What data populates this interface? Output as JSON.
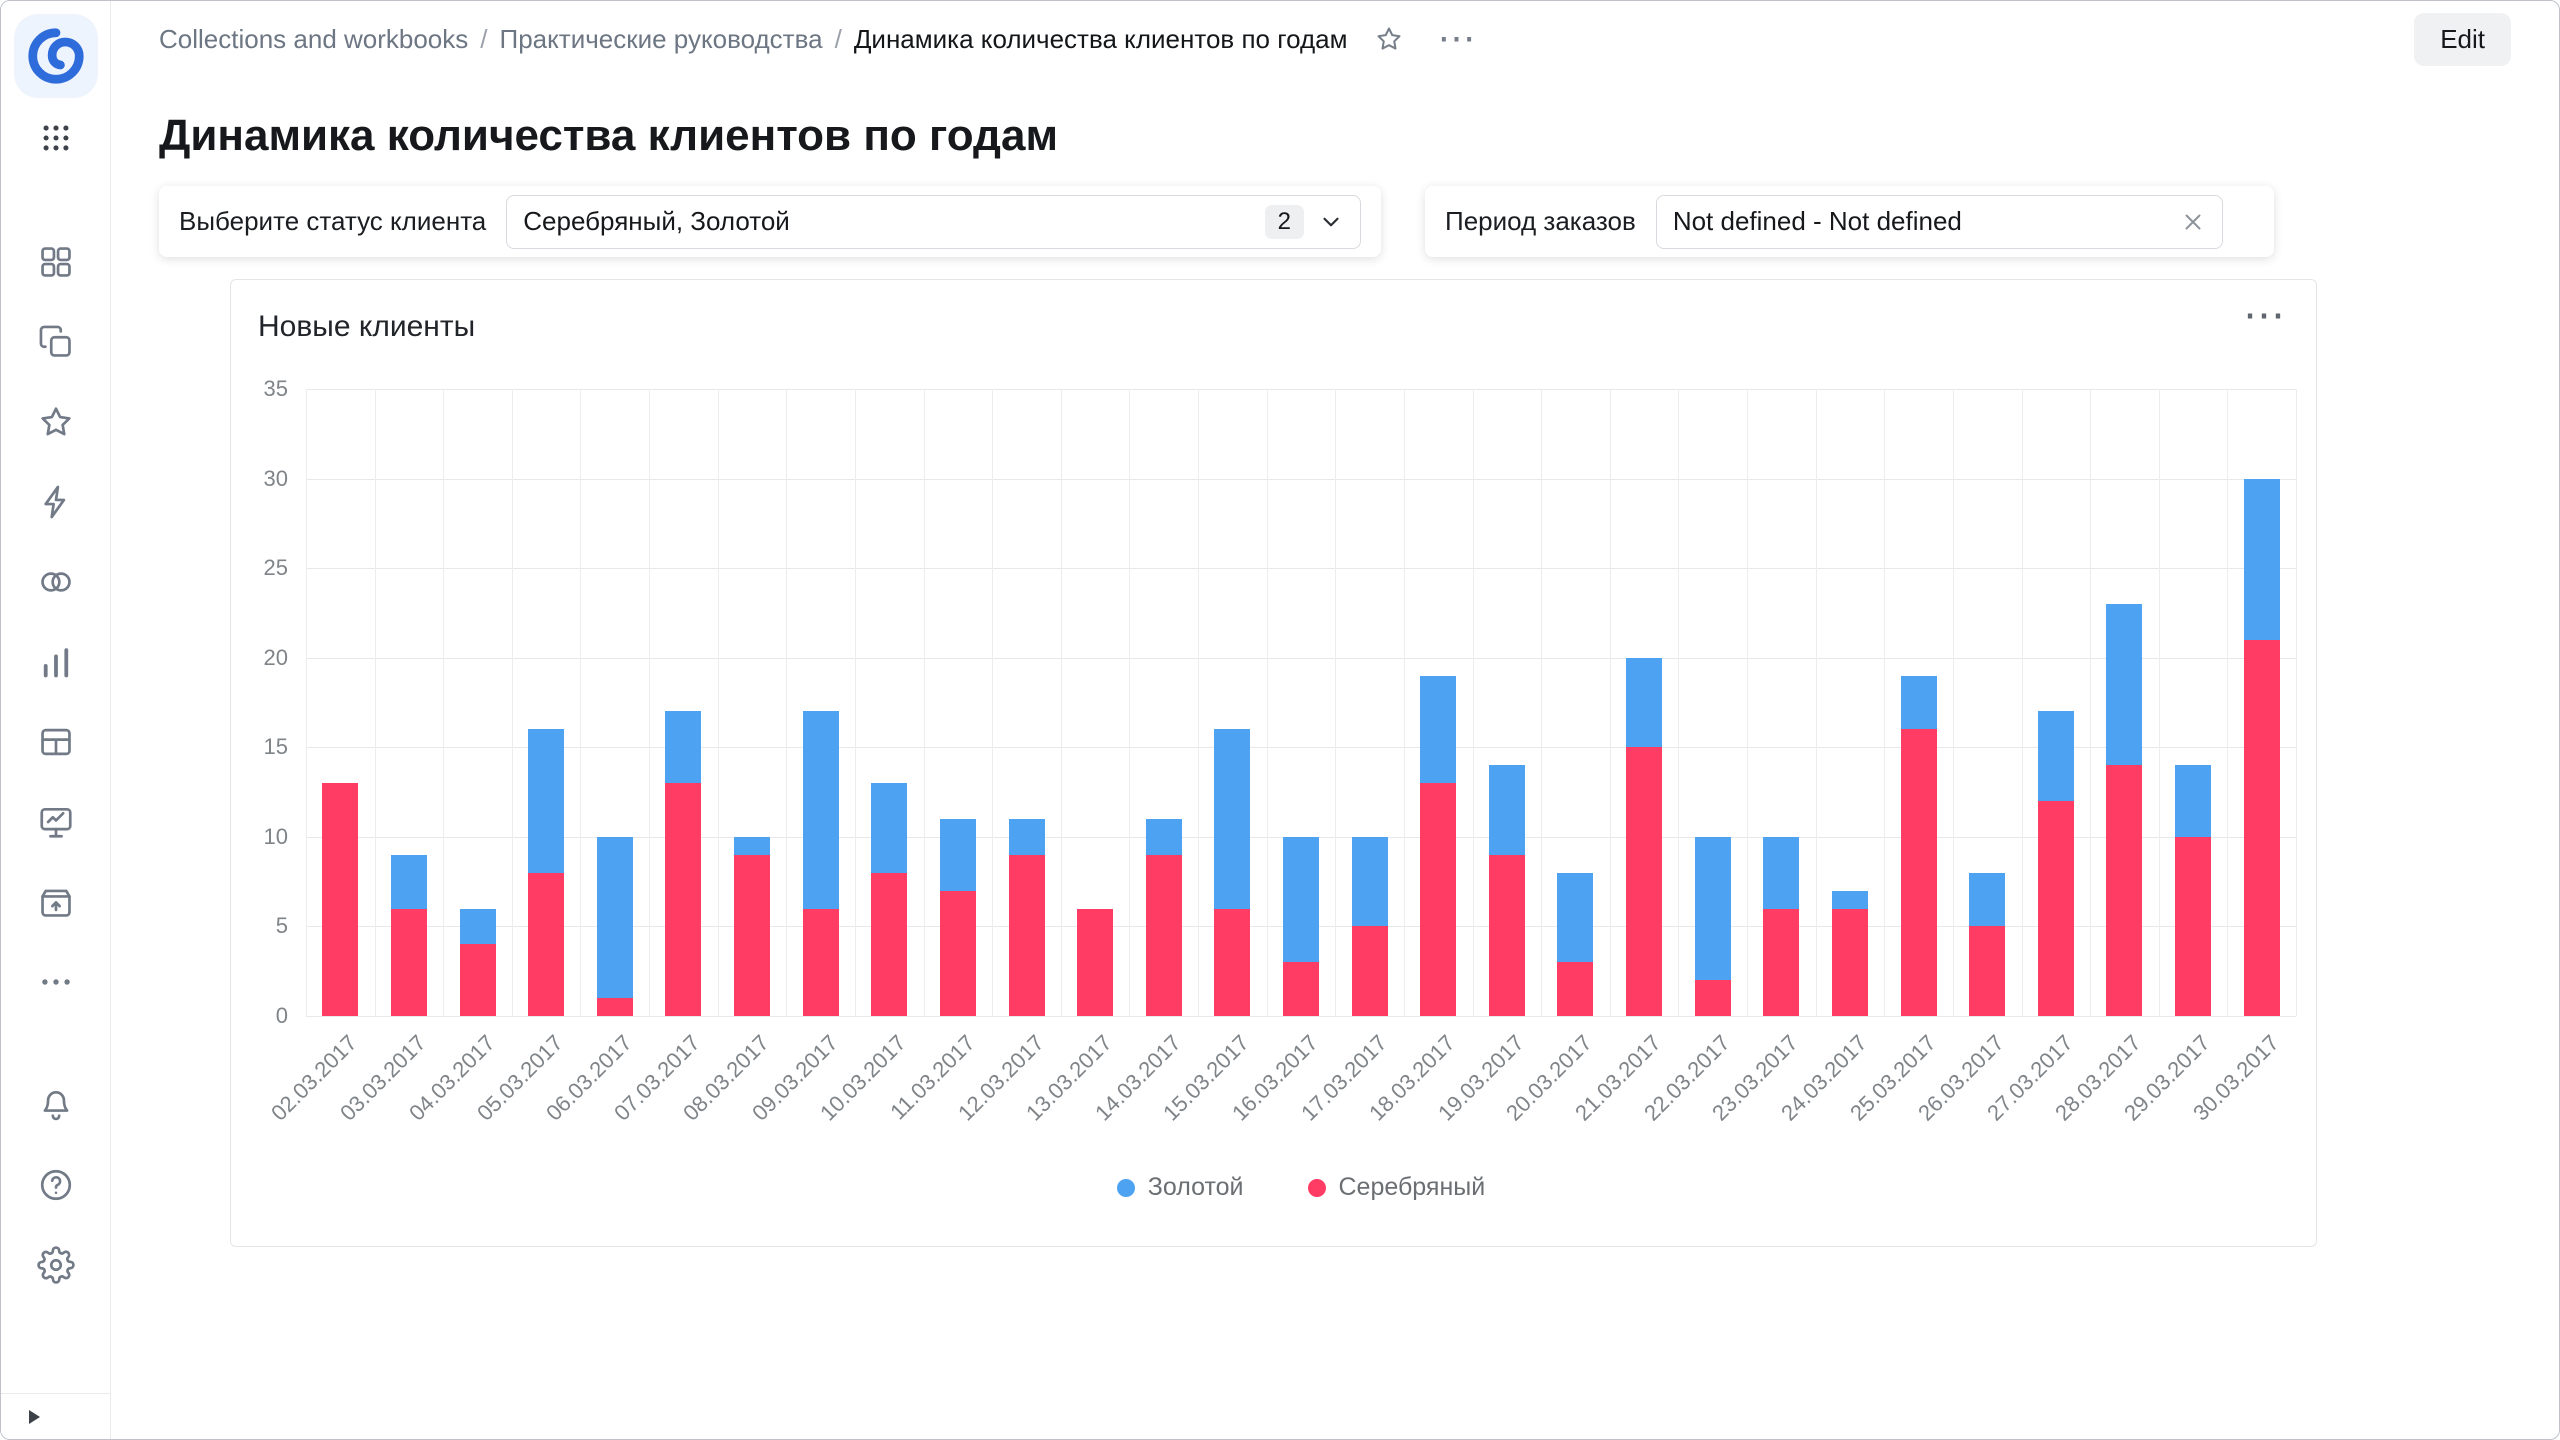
{
  "header": {
    "breadcrumb": [
      "Collections and workbooks",
      "Практические руководства",
      "Динамика количества клиентов по годам"
    ],
    "separator": "/",
    "edit_button": "Edit",
    "menu_icon": "⋯"
  },
  "page": {
    "title": "Динамика количества клиентов по годам"
  },
  "filters": {
    "status_label": "Выберите статус клиента",
    "status_value": "Серебряный, Золотой",
    "status_count": "2",
    "period_label": "Период заказов",
    "period_value": "Not defined - Not defined"
  },
  "card": {
    "title": "Новые клиенты",
    "menu_icon": "⋯"
  },
  "chart_data": {
    "type": "bar",
    "stacked": true,
    "title": "Новые клиенты",
    "xlabel": "",
    "ylabel": "",
    "ylim": [
      0,
      35
    ],
    "yticks": [
      0,
      5,
      10,
      15,
      20,
      25,
      30,
      35
    ],
    "grid": true,
    "legend_position": "bottom",
    "legend_order": [
      "Золотой",
      "Серебряный"
    ],
    "categories": [
      "02.03.2017",
      "03.03.2017",
      "04.03.2017",
      "05.03.2017",
      "06.03.2017",
      "07.03.2017",
      "08.03.2017",
      "09.03.2017",
      "10.03.2017",
      "11.03.2017",
      "12.03.2017",
      "13.03.2017",
      "14.03.2017",
      "15.03.2017",
      "16.03.2017",
      "17.03.2017",
      "18.03.2017",
      "19.03.2017",
      "20.03.2017",
      "21.03.2017",
      "22.03.2017",
      "23.03.2017",
      "24.03.2017",
      "25.03.2017",
      "26.03.2017",
      "27.03.2017",
      "28.03.2017",
      "29.03.2017",
      "30.03.2017"
    ],
    "series": [
      {
        "name": "Серебряный",
        "color": "#FF3D64",
        "values": [
          13,
          6,
          4,
          8,
          1,
          13,
          9,
          6,
          8,
          7,
          9,
          6,
          9,
          6,
          3,
          5,
          13,
          9,
          3,
          15,
          2,
          6,
          6,
          16,
          5,
          12,
          14,
          10,
          21
        ]
      },
      {
        "name": "Золотой",
        "color": "#4DA2F1",
        "values": [
          0,
          3,
          2,
          8,
          9,
          4,
          1,
          11,
          5,
          4,
          2,
          0,
          2,
          10,
          7,
          5,
          6,
          5,
          5,
          5,
          8,
          4,
          1,
          3,
          3,
          5,
          9,
          4,
          9
        ]
      }
    ]
  },
  "sidebar": {
    "icons": [
      "datalens-logo",
      "apps-grid",
      "collections",
      "workbooks",
      "favorites",
      "connections",
      "datasets",
      "charts",
      "dashboards",
      "editor",
      "storage",
      "more",
      "notifications",
      "help",
      "settings",
      "expand-panel"
    ]
  }
}
